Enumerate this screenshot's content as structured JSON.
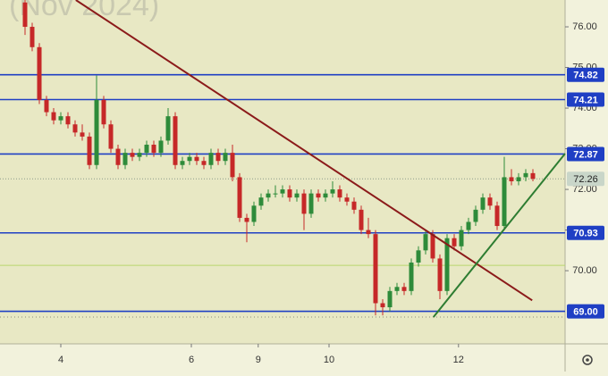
{
  "chart_data": {
    "type": "candlestick",
    "watermark": "(Nov 2024)",
    "xlim": [
      -3.5,
      75.5
    ],
    "ylim": [
      68.2,
      76.66
    ],
    "xticks": [
      {
        "value": 5,
        "label": "4"
      },
      {
        "value": 23.25,
        "label": "6"
      },
      {
        "value": 32.6,
        "label": "9"
      },
      {
        "value": 42.5,
        "label": "10"
      },
      {
        "value": 60.6,
        "label": "12"
      }
    ],
    "yticks": [
      {
        "value": 76,
        "label": "76.00"
      },
      {
        "value": 75,
        "label": "75.00"
      },
      {
        "value": 74,
        "label": "74.00"
      },
      {
        "value": 73,
        "label": "73.00"
      },
      {
        "value": 72,
        "label": "72.00"
      },
      {
        "value": 71,
        "label": "71.00"
      },
      {
        "value": 70,
        "label": "70.00"
      }
    ],
    "up_color": "#2e8b3a",
    "down_color": "#c62828",
    "ohlc": [
      [
        76.6,
        76.7,
        75.8,
        76.0
      ],
      [
        76.0,
        76.1,
        75.4,
        75.5
      ],
      [
        75.5,
        75.6,
        74.1,
        74.2
      ],
      [
        74.2,
        74.3,
        73.8,
        73.9
      ],
      [
        73.9,
        74.0,
        73.6,
        73.7
      ],
      [
        73.7,
        73.9,
        73.6,
        73.8
      ],
      [
        73.8,
        73.9,
        73.5,
        73.6
      ],
      [
        73.6,
        73.7,
        73.3,
        73.4
      ],
      [
        73.4,
        73.6,
        73.2,
        73.3
      ],
      [
        73.3,
        73.4,
        72.5,
        72.6
      ],
      [
        72.6,
        74.8,
        72.5,
        74.2
      ],
      [
        74.2,
        74.3,
        73.5,
        73.6
      ],
      [
        73.6,
        73.7,
        72.9,
        73.0
      ],
      [
        73.0,
        73.1,
        72.5,
        72.6
      ],
      [
        72.6,
        73.0,
        72.5,
        72.9
      ],
      [
        72.9,
        73.0,
        72.7,
        72.8
      ],
      [
        72.8,
        73.0,
        72.7,
        72.9
      ],
      [
        72.9,
        73.2,
        72.8,
        73.1
      ],
      [
        73.1,
        73.2,
        72.8,
        72.9
      ],
      [
        72.9,
        73.3,
        72.8,
        73.2
      ],
      [
        73.2,
        74.0,
        73.1,
        73.8
      ],
      [
        73.8,
        73.9,
        72.5,
        72.6
      ],
      [
        72.6,
        72.8,
        72.5,
        72.7
      ],
      [
        72.7,
        72.9,
        72.6,
        72.8
      ],
      [
        72.8,
        72.9,
        72.6,
        72.7
      ],
      [
        72.7,
        72.8,
        72.5,
        72.6
      ],
      [
        72.6,
        73.0,
        72.5,
        72.9
      ],
      [
        72.9,
        73.0,
        72.6,
        72.7
      ],
      [
        72.7,
        73.0,
        72.6,
        72.9
      ],
      [
        72.9,
        73.1,
        72.2,
        72.3
      ],
      [
        72.3,
        72.4,
        71.2,
        71.3
      ],
      [
        71.3,
        71.4,
        70.7,
        71.2
      ],
      [
        71.2,
        71.7,
        71.1,
        71.6
      ],
      [
        71.6,
        71.9,
        71.5,
        71.8
      ],
      [
        71.8,
        72.0,
        71.7,
        71.9
      ],
      [
        71.9,
        72.1,
        71.8,
        71.9
      ],
      [
        71.9,
        72.1,
        71.8,
        72.0
      ],
      [
        72.0,
        72.1,
        71.7,
        71.8
      ],
      [
        71.8,
        72.0,
        71.7,
        71.9
      ],
      [
        71.9,
        72.0,
        71.0,
        71.4
      ],
      [
        71.4,
        72.0,
        71.3,
        71.9
      ],
      [
        71.9,
        72.0,
        71.7,
        71.8
      ],
      [
        71.8,
        72.0,
        71.7,
        71.9
      ],
      [
        71.9,
        72.2,
        71.8,
        72.0
      ],
      [
        72.0,
        72.1,
        71.7,
        71.8
      ],
      [
        71.8,
        71.9,
        71.6,
        71.7
      ],
      [
        71.7,
        71.8,
        71.4,
        71.5
      ],
      [
        71.5,
        71.6,
        70.9,
        71.0
      ],
      [
        71.0,
        71.3,
        70.8,
        70.9
      ],
      [
        70.9,
        71.0,
        68.9,
        69.2
      ],
      [
        69.2,
        69.3,
        68.9,
        69.1
      ],
      [
        69.1,
        69.6,
        69.0,
        69.5
      ],
      [
        69.5,
        69.7,
        69.4,
        69.6
      ],
      [
        69.6,
        69.7,
        69.4,
        69.5
      ],
      [
        69.5,
        70.3,
        69.4,
        70.2
      ],
      [
        70.2,
        70.6,
        70.1,
        70.5
      ],
      [
        70.5,
        71.0,
        70.4,
        70.9
      ],
      [
        70.9,
        71.0,
        70.2,
        70.3
      ],
      [
        70.3,
        70.4,
        69.3,
        69.5
      ],
      [
        69.5,
        70.9,
        69.4,
        70.8
      ],
      [
        70.8,
        70.9,
        70.5,
        70.6
      ],
      [
        70.6,
        71.1,
        70.5,
        71.0
      ],
      [
        71.0,
        71.3,
        70.9,
        71.2
      ],
      [
        71.2,
        71.6,
        71.1,
        71.5
      ],
      [
        71.5,
        71.9,
        71.4,
        71.8
      ],
      [
        71.8,
        71.9,
        71.5,
        71.6
      ],
      [
        71.6,
        71.7,
        71.0,
        71.1
      ],
      [
        71.1,
        72.8,
        71.0,
        72.3
      ],
      [
        72.3,
        72.5,
        72.1,
        72.2
      ],
      [
        72.2,
        72.4,
        72.1,
        72.3
      ],
      [
        72.3,
        72.5,
        72.2,
        72.4
      ],
      [
        72.4,
        72.5,
        72.2,
        72.26
      ]
    ],
    "levels": [
      {
        "value": 74.82,
        "label": "74.82"
      },
      {
        "value": 74.21,
        "label": "74.21"
      },
      {
        "value": 72.87,
        "label": "72.87"
      },
      {
        "value": 70.93,
        "label": "70.93"
      },
      {
        "value": 69.0,
        "label": "69.00"
      }
    ],
    "level_color": "#1f3fc4",
    "last_price": {
      "value": 72.26,
      "label": "72.26"
    },
    "extra_lines": [
      {
        "value": 70.13,
        "color": "#b9d66c",
        "style": "solid"
      },
      {
        "value": 68.86,
        "color": "#8a8a7a",
        "style": "dotted"
      }
    ],
    "trendlines": [
      {
        "x": [
          7.1,
          70.9
        ],
        "y": [
          76.66,
          69.27
        ],
        "color": "#8b1a1a"
      },
      {
        "x": [
          57.1,
          75.5
        ],
        "y": [
          68.86,
          72.88
        ],
        "color": "#2e7d32"
      }
    ]
  }
}
